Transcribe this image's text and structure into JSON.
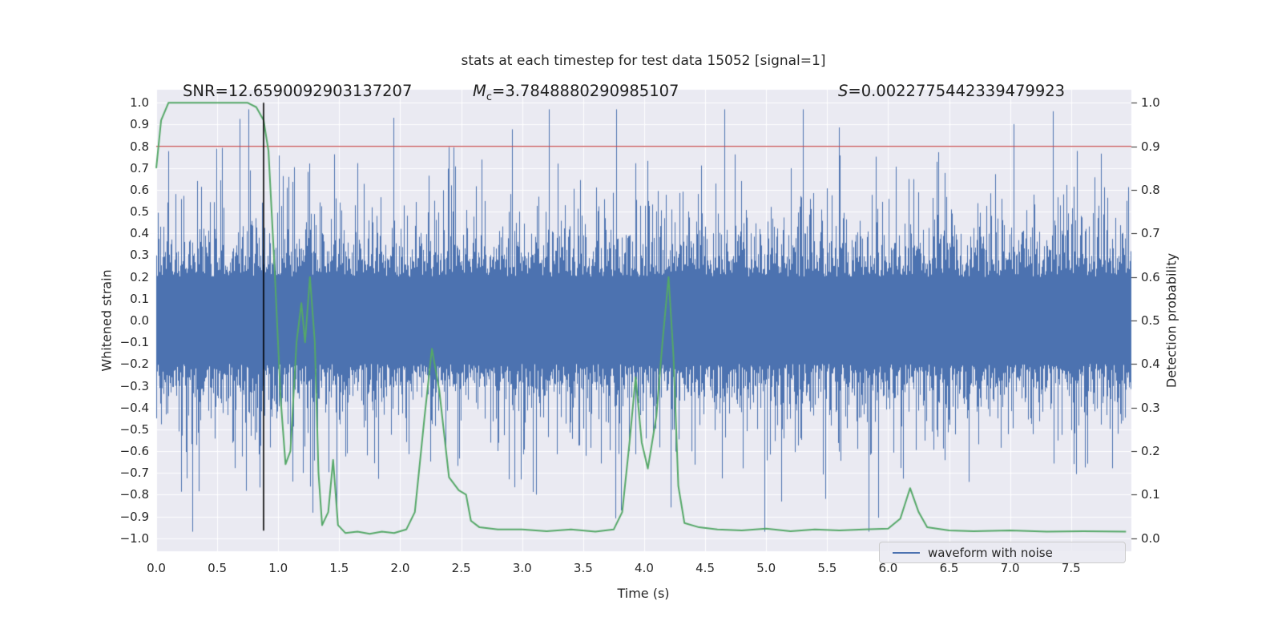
{
  "figure": {
    "title": "stats at each timestep for test data 15052 [signal=1]"
  },
  "annotations": {
    "snr": {
      "text": "SNR=12.6590092903137207"
    },
    "mc": {
      "symbol": "M",
      "subscript": "c",
      "value": "=3.7848880290985107"
    },
    "s": {
      "symbol": "S",
      "value": "=0.0022775442339479923"
    }
  },
  "legend": {
    "label": "waveform with noise"
  },
  "chart_data": {
    "type": "line",
    "title": "stats at each timestep for test data 15052 [signal=1]",
    "xlabel": "Time (s)",
    "ylabel_left": "Whitened strain",
    "ylabel_right": "Detection probability",
    "xlim": [
      0.0,
      7.994
    ],
    "ylim_left": [
      -1.06,
      1.06
    ],
    "right_axis_mapping": "probability = (strain + 1) / 2",
    "x_ticks": [
      0.0,
      0.5,
      1.0,
      1.5,
      2.0,
      2.5,
      3.0,
      3.5,
      4.0,
      4.5,
      5.0,
      5.5,
      6.0,
      6.5,
      7.0,
      7.5
    ],
    "y_ticks_left": [
      1.0,
      0.9,
      0.8,
      0.7,
      0.6,
      0.5,
      0.4,
      0.3,
      0.2,
      0.1,
      0.0,
      -0.1,
      -0.2,
      -0.3,
      -0.4,
      -0.5,
      -0.6,
      -0.7,
      -0.8,
      -0.9,
      -1.0
    ],
    "y_ticks_right": [
      1.0,
      0.9,
      0.8,
      0.7,
      0.6,
      0.5,
      0.4,
      0.3,
      0.2,
      0.1,
      0.0
    ],
    "background_color": "#eaeaf2",
    "grid_color": "#ffffff",
    "grid": true,
    "legend": {
      "label": "waveform with noise",
      "position": "lower right"
    },
    "annotations": {
      "SNR": "12.6590092903137207",
      "Mc": "3.7848880290985107",
      "S": "0.0022775442339479923"
    },
    "series": [
      {
        "name": "waveform with noise",
        "kind": "noise",
        "color": "#4c72b0",
        "core_half_width": 0.2,
        "spike_mean": 0.135,
        "spike_max": 0.77,
        "seed": 15052
      },
      {
        "name": "detection probability",
        "kind": "line",
        "color": "#55a868",
        "points": [
          [
            0.0,
            0.85
          ],
          [
            0.04,
            0.96
          ],
          [
            0.1,
            1.0
          ],
          [
            0.3,
            1.0
          ],
          [
            0.5,
            1.0
          ],
          [
            0.75,
            1.0
          ],
          [
            0.82,
            0.99
          ],
          [
            0.88,
            0.96
          ],
          [
            0.92,
            0.89
          ],
          [
            0.97,
            0.62
          ],
          [
            1.02,
            0.32
          ],
          [
            1.06,
            0.17
          ],
          [
            1.1,
            0.2
          ],
          [
            1.15,
            0.45
          ],
          [
            1.19,
            0.54
          ],
          [
            1.22,
            0.45
          ],
          [
            1.26,
            0.6
          ],
          [
            1.3,
            0.45
          ],
          [
            1.33,
            0.15
          ],
          [
            1.36,
            0.03
          ],
          [
            1.41,
            0.06
          ],
          [
            1.45,
            0.18
          ],
          [
            1.49,
            0.03
          ],
          [
            1.55,
            0.012
          ],
          [
            1.65,
            0.015
          ],
          [
            1.75,
            0.01
          ],
          [
            1.85,
            0.015
          ],
          [
            1.95,
            0.012
          ],
          [
            2.05,
            0.02
          ],
          [
            2.12,
            0.06
          ],
          [
            2.2,
            0.28
          ],
          [
            2.26,
            0.435
          ],
          [
            2.32,
            0.34
          ],
          [
            2.4,
            0.14
          ],
          [
            2.48,
            0.11
          ],
          [
            2.54,
            0.1
          ],
          [
            2.58,
            0.04
          ],
          [
            2.65,
            0.025
          ],
          [
            2.8,
            0.02
          ],
          [
            3.0,
            0.02
          ],
          [
            3.2,
            0.016
          ],
          [
            3.4,
            0.02
          ],
          [
            3.6,
            0.015
          ],
          [
            3.75,
            0.02
          ],
          [
            3.82,
            0.06
          ],
          [
            3.88,
            0.22
          ],
          [
            3.93,
            0.37
          ],
          [
            3.98,
            0.22
          ],
          [
            4.03,
            0.16
          ],
          [
            4.1,
            0.28
          ],
          [
            4.15,
            0.45
          ],
          [
            4.2,
            0.6
          ],
          [
            4.24,
            0.42
          ],
          [
            4.28,
            0.12
          ],
          [
            4.33,
            0.035
          ],
          [
            4.45,
            0.025
          ],
          [
            4.6,
            0.02
          ],
          [
            4.8,
            0.018
          ],
          [
            5.0,
            0.022
          ],
          [
            5.2,
            0.016
          ],
          [
            5.4,
            0.02
          ],
          [
            5.6,
            0.018
          ],
          [
            5.8,
            0.02
          ],
          [
            6.0,
            0.022
          ],
          [
            6.1,
            0.045
          ],
          [
            6.18,
            0.115
          ],
          [
            6.25,
            0.06
          ],
          [
            6.32,
            0.025
          ],
          [
            6.5,
            0.018
          ],
          [
            6.7,
            0.016
          ],
          [
            7.0,
            0.018
          ],
          [
            7.3,
            0.015
          ],
          [
            7.6,
            0.016
          ],
          [
            7.95,
            0.015
          ]
        ]
      },
      {
        "name": "detection threshold",
        "kind": "hline",
        "color": "#c44e52",
        "y_probability": 0.9
      },
      {
        "name": "event marker",
        "kind": "vline",
        "color": "#000000",
        "x": 0.88,
        "y_from": 1.0,
        "y_to": -0.965
      }
    ]
  }
}
